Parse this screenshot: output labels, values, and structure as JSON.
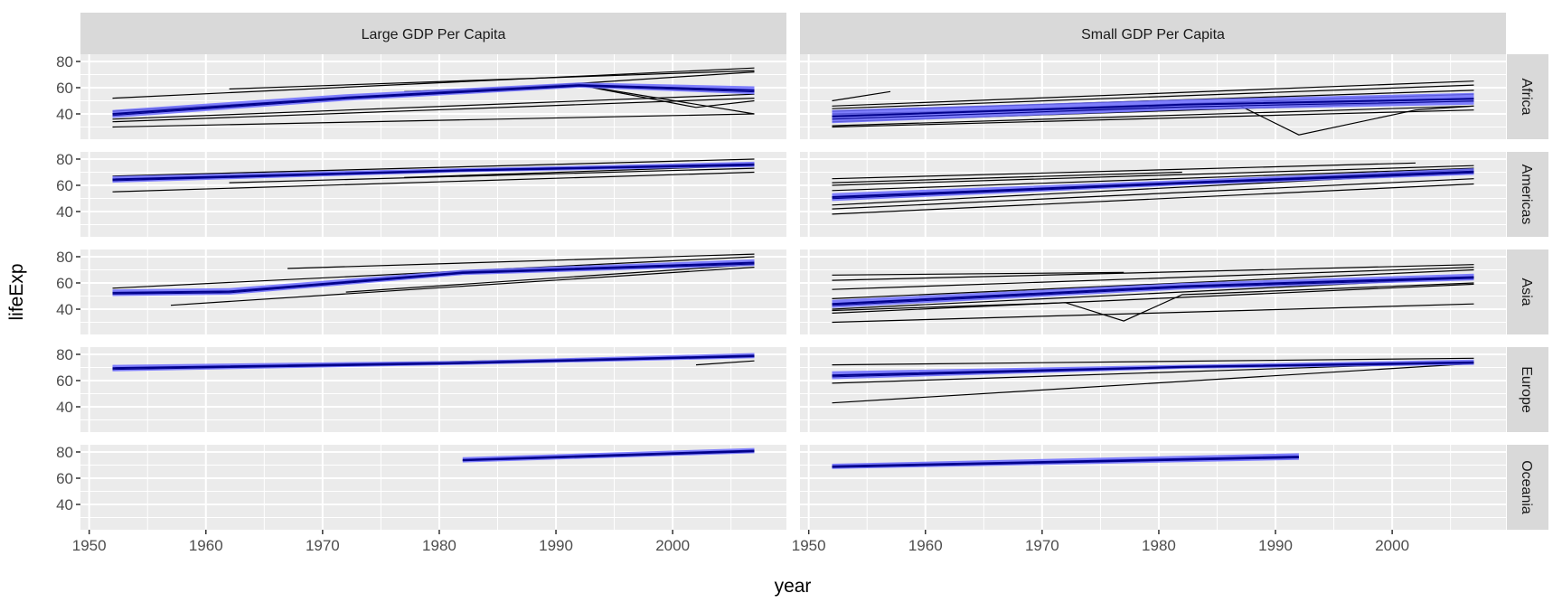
{
  "chart_data": {
    "type": "line",
    "xlabel": "year",
    "ylabel": "lifeExp",
    "xlim": [
      1949.25,
      2009.75
    ],
    "ylim": [
      20.7,
      85.5
    ],
    "x_ticks": [
      1950,
      1960,
      1970,
      1980,
      1990,
      2000
    ],
    "y_ticks": [
      40,
      60,
      80
    ],
    "grid": true,
    "columns": [
      "Large GDP Per Capita",
      "Small GDP Per Capita"
    ],
    "rows": [
      "Africa",
      "Americas",
      "Asia",
      "Europe",
      "Oceania"
    ],
    "colors": {
      "country_line": "#000000",
      "band": "#6b6bff",
      "band_line": "#00008b",
      "panel": "#ebebeb",
      "strip": "#d9d9d9"
    },
    "panels": [
      {
        "col": 0,
        "row": 0,
        "band": {
          "x": [
            1952,
            1972,
            1992,
            2007
          ],
          "lo": [
            37,
            50,
            60,
            55
          ],
          "hi": [
            43,
            55,
            64,
            61
          ]
        },
        "lines": [
          {
            "x": [
              1952,
              2007
            ],
            "y": [
              52,
              75
            ]
          },
          {
            "x": [
              1952,
              2007
            ],
            "y": [
              40,
              72
            ]
          },
          {
            "x": [
              1952,
              2007
            ],
            "y": [
              36,
              55
            ]
          },
          {
            "x": [
              1952,
              2007
            ],
            "y": [
              34,
              52
            ]
          },
          {
            "x": [
              1952,
              2007
            ],
            "y": [
              30,
              40
            ]
          },
          {
            "x": [
              1962,
              2007
            ],
            "y": [
              59,
              73
            ]
          },
          {
            "x": [
              1952,
              1992,
              2007
            ],
            "y": [
              42,
              62,
              40
            ]
          },
          {
            "x": [
              1977,
              1992,
              2002,
              2007
            ],
            "y": [
              57,
              62,
              45,
              50
            ]
          }
        ]
      },
      {
        "col": 1,
        "row": 0,
        "band": {
          "x": [
            1952,
            1982,
            2007
          ],
          "lo": [
            33,
            43,
            47
          ],
          "hi": [
            43,
            51,
            56
          ]
        },
        "lines": [
          {
            "x": [
              1952,
              1957
            ],
            "y": [
              50,
              57
            ]
          },
          {
            "x": [
              1952,
              2007
            ],
            "y": [
              46,
              65
            ]
          },
          {
            "x": [
              1952,
              2007
            ],
            "y": [
              44,
              62
            ]
          },
          {
            "x": [
              1952,
              2007
            ],
            "y": [
              42,
              58
            ]
          },
          {
            "x": [
              1952,
              2007
            ],
            "y": [
              39,
              55
            ]
          },
          {
            "x": [
              1952,
              2007
            ],
            "y": [
              36,
              52
            ]
          },
          {
            "x": [
              1952,
              2007
            ],
            "y": [
              34,
              50
            ]
          },
          {
            "x": [
              1952,
              2007
            ],
            "y": [
              31,
              46
            ]
          },
          {
            "x": [
              1952,
              2007
            ],
            "y": [
              30,
              43
            ]
          },
          {
            "x": [
              1952,
              1987,
              1992,
              2002,
              2007
            ],
            "y": [
              40,
              46,
              24,
              43,
              46
            ]
          }
        ]
      },
      {
        "col": 0,
        "row": 1,
        "band": {
          "x": [
            1952,
            1982,
            2007
          ],
          "lo": [
            62,
            70,
            74
          ],
          "hi": [
            67,
            73,
            78
          ]
        },
        "lines": [
          {
            "x": [
              1952,
              2007
            ],
            "y": [
              55,
              70
            ]
          },
          {
            "x": [
              1952,
              2007
            ],
            "y": [
              67,
              80
            ]
          },
          {
            "x": [
              1977,
              2007
            ],
            "y": [
              66,
              75
            ]
          },
          {
            "x": [
              1962,
              2007
            ],
            "y": [
              62,
              73
            ]
          }
        ]
      },
      {
        "col": 1,
        "row": 1,
        "band": {
          "x": [
            1952,
            1982,
            2007
          ],
          "lo": [
            48,
            60,
            68
          ],
          "hi": [
            54,
            64,
            73
          ]
        },
        "lines": [
          {
            "x": [
              1952,
              2002
            ],
            "y": [
              65,
              77
            ]
          },
          {
            "x": [
              1952,
              1982
            ],
            "y": [
              62,
              70
            ]
          },
          {
            "x": [
              1952,
              2007
            ],
            "y": [
              60,
              75
            ]
          },
          {
            "x": [
              1952,
              2007
            ],
            "y": [
              56,
              73
            ]
          },
          {
            "x": [
              1952,
              2007
            ],
            "y": [
              50,
              72
            ]
          },
          {
            "x": [
              1952,
              2007
            ],
            "y": [
              45,
              70
            ]
          },
          {
            "x": [
              1952,
              2007
            ],
            "y": [
              42,
              65
            ]
          },
          {
            "x": [
              1952,
              2007
            ],
            "y": [
              38,
              61
            ]
          }
        ]
      },
      {
        "col": 0,
        "row": 2,
        "band": {
          "x": [
            1952,
            1962,
            1982,
            2007
          ],
          "lo": [
            50,
            51,
            66,
            73
          ],
          "hi": [
            55,
            56,
            70,
            78
          ]
        },
        "lines": [
          {
            "x": [
              1957,
              2007
            ],
            "y": [
              43,
              72
            ]
          },
          {
            "x": [
              1967,
              2007
            ],
            "y": [
              71,
              82
            ]
          },
          {
            "x": [
              1952,
              2007
            ],
            "y": [
              56,
              80
            ]
          },
          {
            "x": [
              1972,
              2007
            ],
            "y": [
              53,
              74
            ]
          }
        ]
      },
      {
        "col": 1,
        "row": 2,
        "band": {
          "x": [
            1952,
            1982,
            2007
          ],
          "lo": [
            41,
            55,
            62
          ],
          "hi": [
            47,
            60,
            67
          ]
        },
        "lines": [
          {
            "x": [
              1952,
              1977
            ],
            "y": [
              66,
              68
            ]
          },
          {
            "x": [
              1952,
              2007
            ],
            "y": [
              62,
              74
            ]
          },
          {
            "x": [
              1952,
              2007
            ],
            "y": [
              55,
              72
            ]
          },
          {
            "x": [
              1952,
              2007
            ],
            "y": [
              48,
              70
            ]
          },
          {
            "x": [
              1952,
              2007
            ],
            "y": [
              40,
              64
            ]
          },
          {
            "x": [
              1952,
              2007
            ],
            "y": [
              37,
              59
            ]
          },
          {
            "x": [
              1952,
              2007
            ],
            "y": [
              30,
              44
            ]
          },
          {
            "x": [
              1952,
              1972,
              1977,
              1982,
              2007
            ],
            "y": [
              39,
              45,
              31,
              51,
              60
            ]
          }
        ]
      },
      {
        "col": 0,
        "row": 3,
        "band": {
          "x": [
            1952,
            1982,
            2007
          ],
          "lo": [
            67,
            72,
            77
          ],
          "hi": [
            72,
            75,
            81
          ]
        },
        "lines": [
          {
            "x": [
              1967,
              2007
            ],
            "y": [
              72,
              79
            ]
          },
          {
            "x": [
              2002,
              2007
            ],
            "y": [
              72,
              75
            ]
          }
        ]
      },
      {
        "col": 1,
        "row": 3,
        "band": {
          "x": [
            1952,
            1982,
            2007
          ],
          "lo": [
            61,
            69,
            72
          ],
          "hi": [
            67,
            72,
            76
          ]
        },
        "lines": [
          {
            "x": [
              1952,
              2007
            ],
            "y": [
              43,
              73
            ]
          },
          {
            "x": [
              1952,
              2007
            ],
            "y": [
              72,
              77
            ]
          },
          {
            "x": [
              1952,
              2007
            ],
            "y": [
              58,
              74
            ]
          }
        ]
      },
      {
        "col": 0,
        "row": 4,
        "band": {
          "x": [
            1982,
            2007
          ],
          "lo": [
            72,
            79
          ],
          "hi": [
            76,
            83
          ]
        },
        "lines": []
      },
      {
        "col": 1,
        "row": 4,
        "band": {
          "x": [
            1952,
            1992
          ],
          "lo": [
            67,
            74
          ],
          "hi": [
            71,
            79
          ]
        },
        "lines": []
      }
    ]
  }
}
